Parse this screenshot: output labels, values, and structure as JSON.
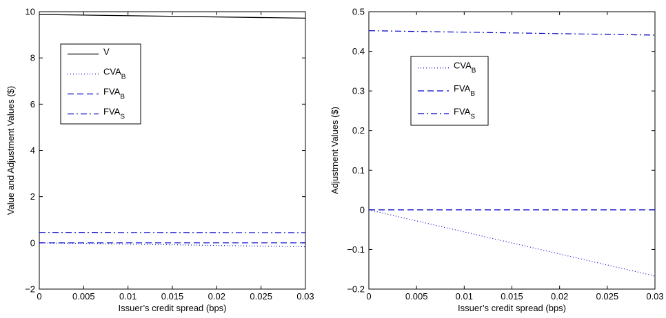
{
  "chart_data": [
    {
      "type": "line",
      "title": "",
      "xlabel": "Issuer’s credit spread (bps)",
      "ylabel": "Value and Adjustment Values ($)",
      "xlim": [
        0,
        0.03
      ],
      "ylim": [
        -2,
        10
      ],
      "xticks": [
        "0",
        "0.005",
        "0.01",
        "0.015",
        "0.02",
        "0.025",
        "0.03"
      ],
      "yticks": [
        "−2",
        "0",
        "2",
        "4",
        "6",
        "8",
        "10"
      ],
      "grid": false,
      "legend_position": "upper-left",
      "x": [
        0,
        0.03
      ],
      "series": [
        {
          "name": "V",
          "label_main": "V",
          "label_sub": "",
          "style": "solid",
          "color": "#000000",
          "values": [
            9.88,
            9.72
          ]
        },
        {
          "name": "CVA_B",
          "label_main": "CVA",
          "label_sub": "B",
          "style": "dotted",
          "color": "#0000cc",
          "values": [
            0,
            -0.17
          ]
        },
        {
          "name": "FVA_B",
          "label_main": "FVA",
          "label_sub": "B",
          "style": "dashed",
          "color": "#0000cc",
          "values": [
            0,
            0
          ]
        },
        {
          "name": "FVA_S",
          "label_main": "FVA",
          "label_sub": "S",
          "style": "dashdot",
          "color": "#0000cc",
          "values": [
            0.452,
            0.441
          ]
        }
      ]
    },
    {
      "type": "line",
      "title": "",
      "xlabel": "Issuer’s credit spread (bps)",
      "ylabel": "Adjustment Values ($)",
      "xlim": [
        0,
        0.03
      ],
      "ylim": [
        -0.2,
        0.5
      ],
      "xticks": [
        "0",
        "0.005",
        "0.01",
        "0.015",
        "0.02",
        "0.025",
        "0.03"
      ],
      "yticks": [
        "−0.2",
        "−0.1",
        "0",
        "0.1",
        "0.2",
        "0.3",
        "0.4",
        "0.5"
      ],
      "grid": false,
      "legend_position": "upper-left",
      "x": [
        0,
        0.03
      ],
      "series": [
        {
          "name": "CVA_B",
          "label_main": "CVA",
          "label_sub": "B",
          "style": "dotted",
          "color": "#0000cc",
          "values": [
            0,
            -0.167
          ]
        },
        {
          "name": "FVA_B",
          "label_main": "FVA",
          "label_sub": "B",
          "style": "dashed",
          "color": "#0000cc",
          "values": [
            0,
            0
          ]
        },
        {
          "name": "FVA_S",
          "label_main": "FVA",
          "label_sub": "S",
          "style": "dashdot",
          "color": "#0000cc",
          "values": [
            0.452,
            0.441
          ]
        }
      ]
    }
  ]
}
